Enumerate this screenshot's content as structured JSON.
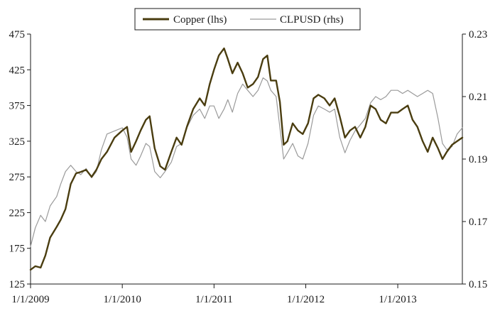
{
  "chart_data": {
    "type": "line",
    "title": "",
    "xlabel": "",
    "ylabel_left": "",
    "ylabel_right": "",
    "x_axis": {
      "range": [
        "2009-01-01",
        "2013-09-15"
      ],
      "tick_labels": [
        "1/1/2009",
        "1/1/2010",
        "1/1/2011",
        "1/1/2012",
        "1/1/2013"
      ],
      "tick_dates": [
        "2009-01-01",
        "2010-01-01",
        "2011-01-01",
        "2012-01-01",
        "2013-01-01"
      ]
    },
    "y_left": {
      "range": [
        125,
        475
      ],
      "ticks": [
        125,
        175,
        225,
        275,
        325,
        375,
        425,
        475
      ],
      "tick_labels": [
        "125",
        "175",
        "225",
        "275",
        "325",
        "375",
        "425",
        "475"
      ]
    },
    "y_right": {
      "range": [
        0.15,
        0.23
      ],
      "ticks": [
        0.15,
        0.17,
        0.19,
        0.21,
        0.23
      ],
      "tick_labels": [
        "0.15",
        "0.17",
        "0.19",
        "0.21",
        "0.23"
      ]
    },
    "grid": false,
    "legend": {
      "placement": "top-center"
    },
    "series": [
      {
        "name": "Copper (lhs)",
        "axis": "left",
        "color": "#4a3d10",
        "points": [
          [
            "2009-01-01",
            145
          ],
          [
            "2009-01-20",
            150
          ],
          [
            "2009-02-10",
            148
          ],
          [
            "2009-03-01",
            165
          ],
          [
            "2009-03-20",
            190
          ],
          [
            "2009-04-15",
            205
          ],
          [
            "2009-05-01",
            215
          ],
          [
            "2009-05-20",
            230
          ],
          [
            "2009-06-10",
            265
          ],
          [
            "2009-07-01",
            280
          ],
          [
            "2009-07-20",
            282
          ],
          [
            "2009-08-10",
            285
          ],
          [
            "2009-09-01",
            275
          ],
          [
            "2009-09-20",
            285
          ],
          [
            "2009-10-10",
            300
          ],
          [
            "2009-11-01",
            310
          ],
          [
            "2009-12-01",
            330
          ],
          [
            "2010-01-01",
            340
          ],
          [
            "2010-01-20",
            345
          ],
          [
            "2010-02-05",
            310
          ],
          [
            "2010-02-25",
            325
          ],
          [
            "2010-03-15",
            340
          ],
          [
            "2010-04-05",
            355
          ],
          [
            "2010-04-20",
            360
          ],
          [
            "2010-05-10",
            315
          ],
          [
            "2010-06-01",
            290
          ],
          [
            "2010-06-20",
            285
          ],
          [
            "2010-07-15",
            310
          ],
          [
            "2010-08-05",
            330
          ],
          [
            "2010-08-25",
            320
          ],
          [
            "2010-09-15",
            345
          ],
          [
            "2010-10-10",
            370
          ],
          [
            "2010-11-05",
            385
          ],
          [
            "2010-11-25",
            375
          ],
          [
            "2010-12-15",
            405
          ],
          [
            "2011-01-01",
            425
          ],
          [
            "2011-01-20",
            445
          ],
          [
            "2011-02-10",
            455
          ],
          [
            "2011-02-25",
            440
          ],
          [
            "2011-03-15",
            420
          ],
          [
            "2011-04-05",
            435
          ],
          [
            "2011-04-25",
            420
          ],
          [
            "2011-05-15",
            400
          ],
          [
            "2011-06-05",
            405
          ],
          [
            "2011-06-25",
            415
          ],
          [
            "2011-07-15",
            440
          ],
          [
            "2011-08-01",
            445
          ],
          [
            "2011-08-15",
            410
          ],
          [
            "2011-09-05",
            410
          ],
          [
            "2011-09-20",
            380
          ],
          [
            "2011-10-05",
            320
          ],
          [
            "2011-10-20",
            325
          ],
          [
            "2011-11-10",
            350
          ],
          [
            "2011-12-01",
            340
          ],
          [
            "2011-12-20",
            335
          ],
          [
            "2012-01-10",
            350
          ],
          [
            "2012-02-01",
            385
          ],
          [
            "2012-02-20",
            390
          ],
          [
            "2012-03-15",
            385
          ],
          [
            "2012-04-05",
            375
          ],
          [
            "2012-04-25",
            385
          ],
          [
            "2012-05-15",
            360
          ],
          [
            "2012-06-05",
            330
          ],
          [
            "2012-06-25",
            340
          ],
          [
            "2012-07-15",
            345
          ],
          [
            "2012-08-05",
            330
          ],
          [
            "2012-08-25",
            345
          ],
          [
            "2012-09-15",
            375
          ],
          [
            "2012-10-05",
            370
          ],
          [
            "2012-10-25",
            355
          ],
          [
            "2012-11-15",
            350
          ],
          [
            "2012-12-05",
            365
          ],
          [
            "2013-01-01",
            365
          ],
          [
            "2013-01-20",
            370
          ],
          [
            "2013-02-10",
            375
          ],
          [
            "2013-03-01",
            355
          ],
          [
            "2013-03-20",
            345
          ],
          [
            "2013-04-10",
            325
          ],
          [
            "2013-04-30",
            310
          ],
          [
            "2013-05-20",
            330
          ],
          [
            "2013-06-10",
            315
          ],
          [
            "2013-06-28",
            300
          ],
          [
            "2013-07-15",
            310
          ],
          [
            "2013-08-05",
            320
          ],
          [
            "2013-08-25",
            325
          ],
          [
            "2013-09-15",
            330
          ]
        ]
      },
      {
        "name": "CLPUSD (rhs)",
        "axis": "right",
        "color": "#9a9a9a",
        "points": [
          [
            "2009-01-01",
            0.162
          ],
          [
            "2009-01-20",
            0.168
          ],
          [
            "2009-02-10",
            0.172
          ],
          [
            "2009-03-01",
            0.17
          ],
          [
            "2009-03-20",
            0.175
          ],
          [
            "2009-04-15",
            0.178
          ],
          [
            "2009-05-01",
            0.182
          ],
          [
            "2009-05-20",
            0.186
          ],
          [
            "2009-06-10",
            0.188
          ],
          [
            "2009-07-01",
            0.186
          ],
          [
            "2009-07-20",
            0.185
          ],
          [
            "2009-08-10",
            0.187
          ],
          [
            "2009-09-01",
            0.184
          ],
          [
            "2009-09-20",
            0.186
          ],
          [
            "2009-10-10",
            0.193
          ],
          [
            "2009-11-01",
            0.198
          ],
          [
            "2009-12-01",
            0.199
          ],
          [
            "2010-01-01",
            0.2
          ],
          [
            "2010-01-20",
            0.197
          ],
          [
            "2010-02-05",
            0.19
          ],
          [
            "2010-02-25",
            0.188
          ],
          [
            "2010-03-15",
            0.191
          ],
          [
            "2010-04-05",
            0.195
          ],
          [
            "2010-04-20",
            0.194
          ],
          [
            "2010-05-10",
            0.186
          ],
          [
            "2010-06-01",
            0.184
          ],
          [
            "2010-06-20",
            0.186
          ],
          [
            "2010-07-15",
            0.189
          ],
          [
            "2010-08-05",
            0.194
          ],
          [
            "2010-08-25",
            0.195
          ],
          [
            "2010-09-15",
            0.2
          ],
          [
            "2010-10-10",
            0.204
          ],
          [
            "2010-11-05",
            0.206
          ],
          [
            "2010-11-25",
            0.203
          ],
          [
            "2010-12-15",
            0.207
          ],
          [
            "2011-01-01",
            0.207
          ],
          [
            "2011-01-20",
            0.203
          ],
          [
            "2011-02-10",
            0.206
          ],
          [
            "2011-02-25",
            0.209
          ],
          [
            "2011-03-15",
            0.205
          ],
          [
            "2011-04-05",
            0.211
          ],
          [
            "2011-04-25",
            0.214
          ],
          [
            "2011-05-15",
            0.212
          ],
          [
            "2011-06-05",
            0.21
          ],
          [
            "2011-06-25",
            0.212
          ],
          [
            "2011-07-15",
            0.216
          ],
          [
            "2011-08-01",
            0.215
          ],
          [
            "2011-08-15",
            0.212
          ],
          [
            "2011-09-05",
            0.21
          ],
          [
            "2011-09-20",
            0.2
          ],
          [
            "2011-10-05",
            0.19
          ],
          [
            "2011-10-20",
            0.192
          ],
          [
            "2011-11-10",
            0.195
          ],
          [
            "2011-12-01",
            0.191
          ],
          [
            "2011-12-20",
            0.19
          ],
          [
            "2012-01-10",
            0.195
          ],
          [
            "2012-02-01",
            0.204
          ],
          [
            "2012-02-20",
            0.207
          ],
          [
            "2012-03-15",
            0.206
          ],
          [
            "2012-04-05",
            0.205
          ],
          [
            "2012-04-25",
            0.206
          ],
          [
            "2012-05-15",
            0.197
          ],
          [
            "2012-06-05",
            0.192
          ],
          [
            "2012-06-25",
            0.196
          ],
          [
            "2012-07-15",
            0.199
          ],
          [
            "2012-08-05",
            0.201
          ],
          [
            "2012-08-25",
            0.203
          ],
          [
            "2012-09-15",
            0.208
          ],
          [
            "2012-10-05",
            0.21
          ],
          [
            "2012-10-25",
            0.209
          ],
          [
            "2012-11-15",
            0.21
          ],
          [
            "2012-12-05",
            0.212
          ],
          [
            "2013-01-01",
            0.212
          ],
          [
            "2013-01-20",
            0.211
          ],
          [
            "2013-02-10",
            0.212
          ],
          [
            "2013-03-01",
            0.211
          ],
          [
            "2013-03-20",
            0.21
          ],
          [
            "2013-04-10",
            0.211
          ],
          [
            "2013-04-30",
            0.212
          ],
          [
            "2013-05-20",
            0.211
          ],
          [
            "2013-06-10",
            0.203
          ],
          [
            "2013-06-28",
            0.195
          ],
          [
            "2013-07-15",
            0.193
          ],
          [
            "2013-08-05",
            0.194
          ],
          [
            "2013-08-25",
            0.198
          ],
          [
            "2013-09-15",
            0.2
          ]
        ]
      }
    ]
  }
}
